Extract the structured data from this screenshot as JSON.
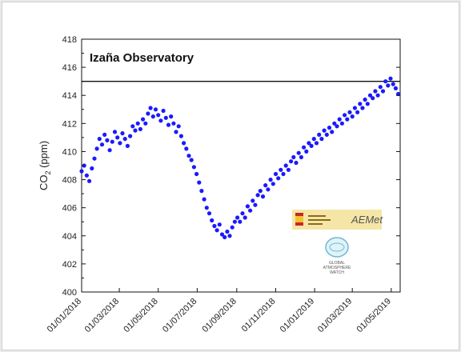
{
  "chart_data": {
    "type": "scatter",
    "title": "Izaña Observatory",
    "ylabel_main": "CO",
    "ylabel_sub": "2",
    "ylabel_unit": " (ppm)",
    "xlabel": "",
    "ylim": [
      400,
      418
    ],
    "yticks": [
      400,
      402,
      404,
      406,
      408,
      410,
      412,
      414,
      416,
      418
    ],
    "x_range": [
      "2018-01-01",
      "2019-05-15"
    ],
    "xticks": [
      {
        "date": "2018-01-01",
        "label": "01/01/2018"
      },
      {
        "date": "2018-03-01",
        "label": "01/03/2018"
      },
      {
        "date": "2018-05-01",
        "label": "01/05/2018"
      },
      {
        "date": "2018-07-01",
        "label": "01/07/2018"
      },
      {
        "date": "2018-09-01",
        "label": "01/09/2018"
      },
      {
        "date": "2018-11-01",
        "label": "01/11/2018"
      },
      {
        "date": "2019-01-01",
        "label": "01/01/2019"
      },
      {
        "date": "2019-03-01",
        "label": "01/03/2019"
      },
      {
        "date": "2019-05-01",
        "label": "01/05/2019"
      }
    ],
    "reference_line": 415,
    "grid": false,
    "marker_color": "#1a1aff",
    "series": [
      {
        "x": [
          "2018-01-01",
          "2018-01-05",
          "2018-01-09",
          "2018-01-13",
          "2018-01-17",
          "2018-01-21",
          "2018-01-25",
          "2018-01-29",
          "2018-02-02",
          "2018-02-06",
          "2018-02-10",
          "2018-02-14",
          "2018-02-18",
          "2018-02-22",
          "2018-02-26",
          "2018-03-02",
          "2018-03-06",
          "2018-03-10",
          "2018-03-14",
          "2018-03-18",
          "2018-03-22",
          "2018-03-26",
          "2018-03-30",
          "2018-04-03",
          "2018-04-07",
          "2018-04-11",
          "2018-04-15",
          "2018-04-19",
          "2018-04-23",
          "2018-04-27",
          "2018-05-01",
          "2018-05-05",
          "2018-05-09",
          "2018-05-13",
          "2018-05-17",
          "2018-05-21",
          "2018-05-25",
          "2018-05-29",
          "2018-06-02",
          "2018-06-06",
          "2018-06-10",
          "2018-06-14",
          "2018-06-18",
          "2018-06-22",
          "2018-06-26",
          "2018-06-30",
          "2018-07-04",
          "2018-07-08",
          "2018-07-12",
          "2018-07-16",
          "2018-07-20",
          "2018-07-24",
          "2018-07-28",
          "2018-08-01",
          "2018-08-05",
          "2018-08-09",
          "2018-08-13",
          "2018-08-17",
          "2018-08-21",
          "2018-08-25",
          "2018-08-29",
          "2018-09-02",
          "2018-09-06",
          "2018-09-10",
          "2018-09-14",
          "2018-09-18",
          "2018-09-22",
          "2018-09-26",
          "2018-09-30",
          "2018-10-04",
          "2018-10-08",
          "2018-10-12",
          "2018-10-16",
          "2018-10-20",
          "2018-10-24",
          "2018-10-28",
          "2018-11-01",
          "2018-11-05",
          "2018-11-09",
          "2018-11-13",
          "2018-11-17",
          "2018-11-21",
          "2018-11-25",
          "2018-11-29",
          "2018-12-03",
          "2018-12-07",
          "2018-12-11",
          "2018-12-15",
          "2018-12-19",
          "2018-12-23",
          "2018-12-27",
          "2018-12-31",
          "2019-01-04",
          "2019-01-08",
          "2019-01-12",
          "2019-01-16",
          "2019-01-20",
          "2019-01-24",
          "2019-01-28",
          "2019-02-01",
          "2019-02-05",
          "2019-02-09",
          "2019-02-13",
          "2019-02-17",
          "2019-02-21",
          "2019-02-25",
          "2019-03-01",
          "2019-03-05",
          "2019-03-09",
          "2019-03-13",
          "2019-03-17",
          "2019-03-21",
          "2019-03-25",
          "2019-03-29",
          "2019-04-02",
          "2019-04-06",
          "2019-04-10",
          "2019-04-14",
          "2019-04-18",
          "2019-04-22",
          "2019-04-26",
          "2019-04-30",
          "2019-05-04",
          "2019-05-08",
          "2019-05-12"
        ],
        "y": [
          408.6,
          409.0,
          408.3,
          407.9,
          408.8,
          409.5,
          410.2,
          410.9,
          410.5,
          411.2,
          410.8,
          410.1,
          410.7,
          411.4,
          411.0,
          410.6,
          411.3,
          410.9,
          410.4,
          411.1,
          411.8,
          411.5,
          412.0,
          411.6,
          412.3,
          412.0,
          412.7,
          413.1,
          412.5,
          413.0,
          412.6,
          412.2,
          412.9,
          412.4,
          411.9,
          412.5,
          412.0,
          411.4,
          411.8,
          411.1,
          410.6,
          410.2,
          409.7,
          409.4,
          408.9,
          408.4,
          407.8,
          407.2,
          406.6,
          406.0,
          405.6,
          405.1,
          404.7,
          404.4,
          404.8,
          404.1,
          403.9,
          404.3,
          404.0,
          404.6,
          405.0,
          405.3,
          405.0,
          405.6,
          405.3,
          406.1,
          405.8,
          406.5,
          406.2,
          406.9,
          407.2,
          406.8,
          407.6,
          407.3,
          408.0,
          407.7,
          408.4,
          408.1,
          408.7,
          408.4,
          409.0,
          408.7,
          409.3,
          409.6,
          409.2,
          409.9,
          409.6,
          410.3,
          410.0,
          410.6,
          410.4,
          410.9,
          410.6,
          411.2,
          410.9,
          411.5,
          411.2,
          411.7,
          411.4,
          412.0,
          411.8,
          412.3,
          412.0,
          412.6,
          412.3,
          412.8,
          412.5,
          413.1,
          412.8,
          413.4,
          413.1,
          413.7,
          413.4,
          414.0,
          413.8,
          414.3,
          414.0,
          414.6,
          414.3,
          415.0,
          414.7,
          415.2,
          414.8,
          414.5,
          414.1
        ]
      }
    ]
  },
  "logos": {
    "aemet_name": "AEMet",
    "gaw_lines": [
      "GLOBAL",
      "ATMOSPHERE",
      "WATCH"
    ]
  }
}
